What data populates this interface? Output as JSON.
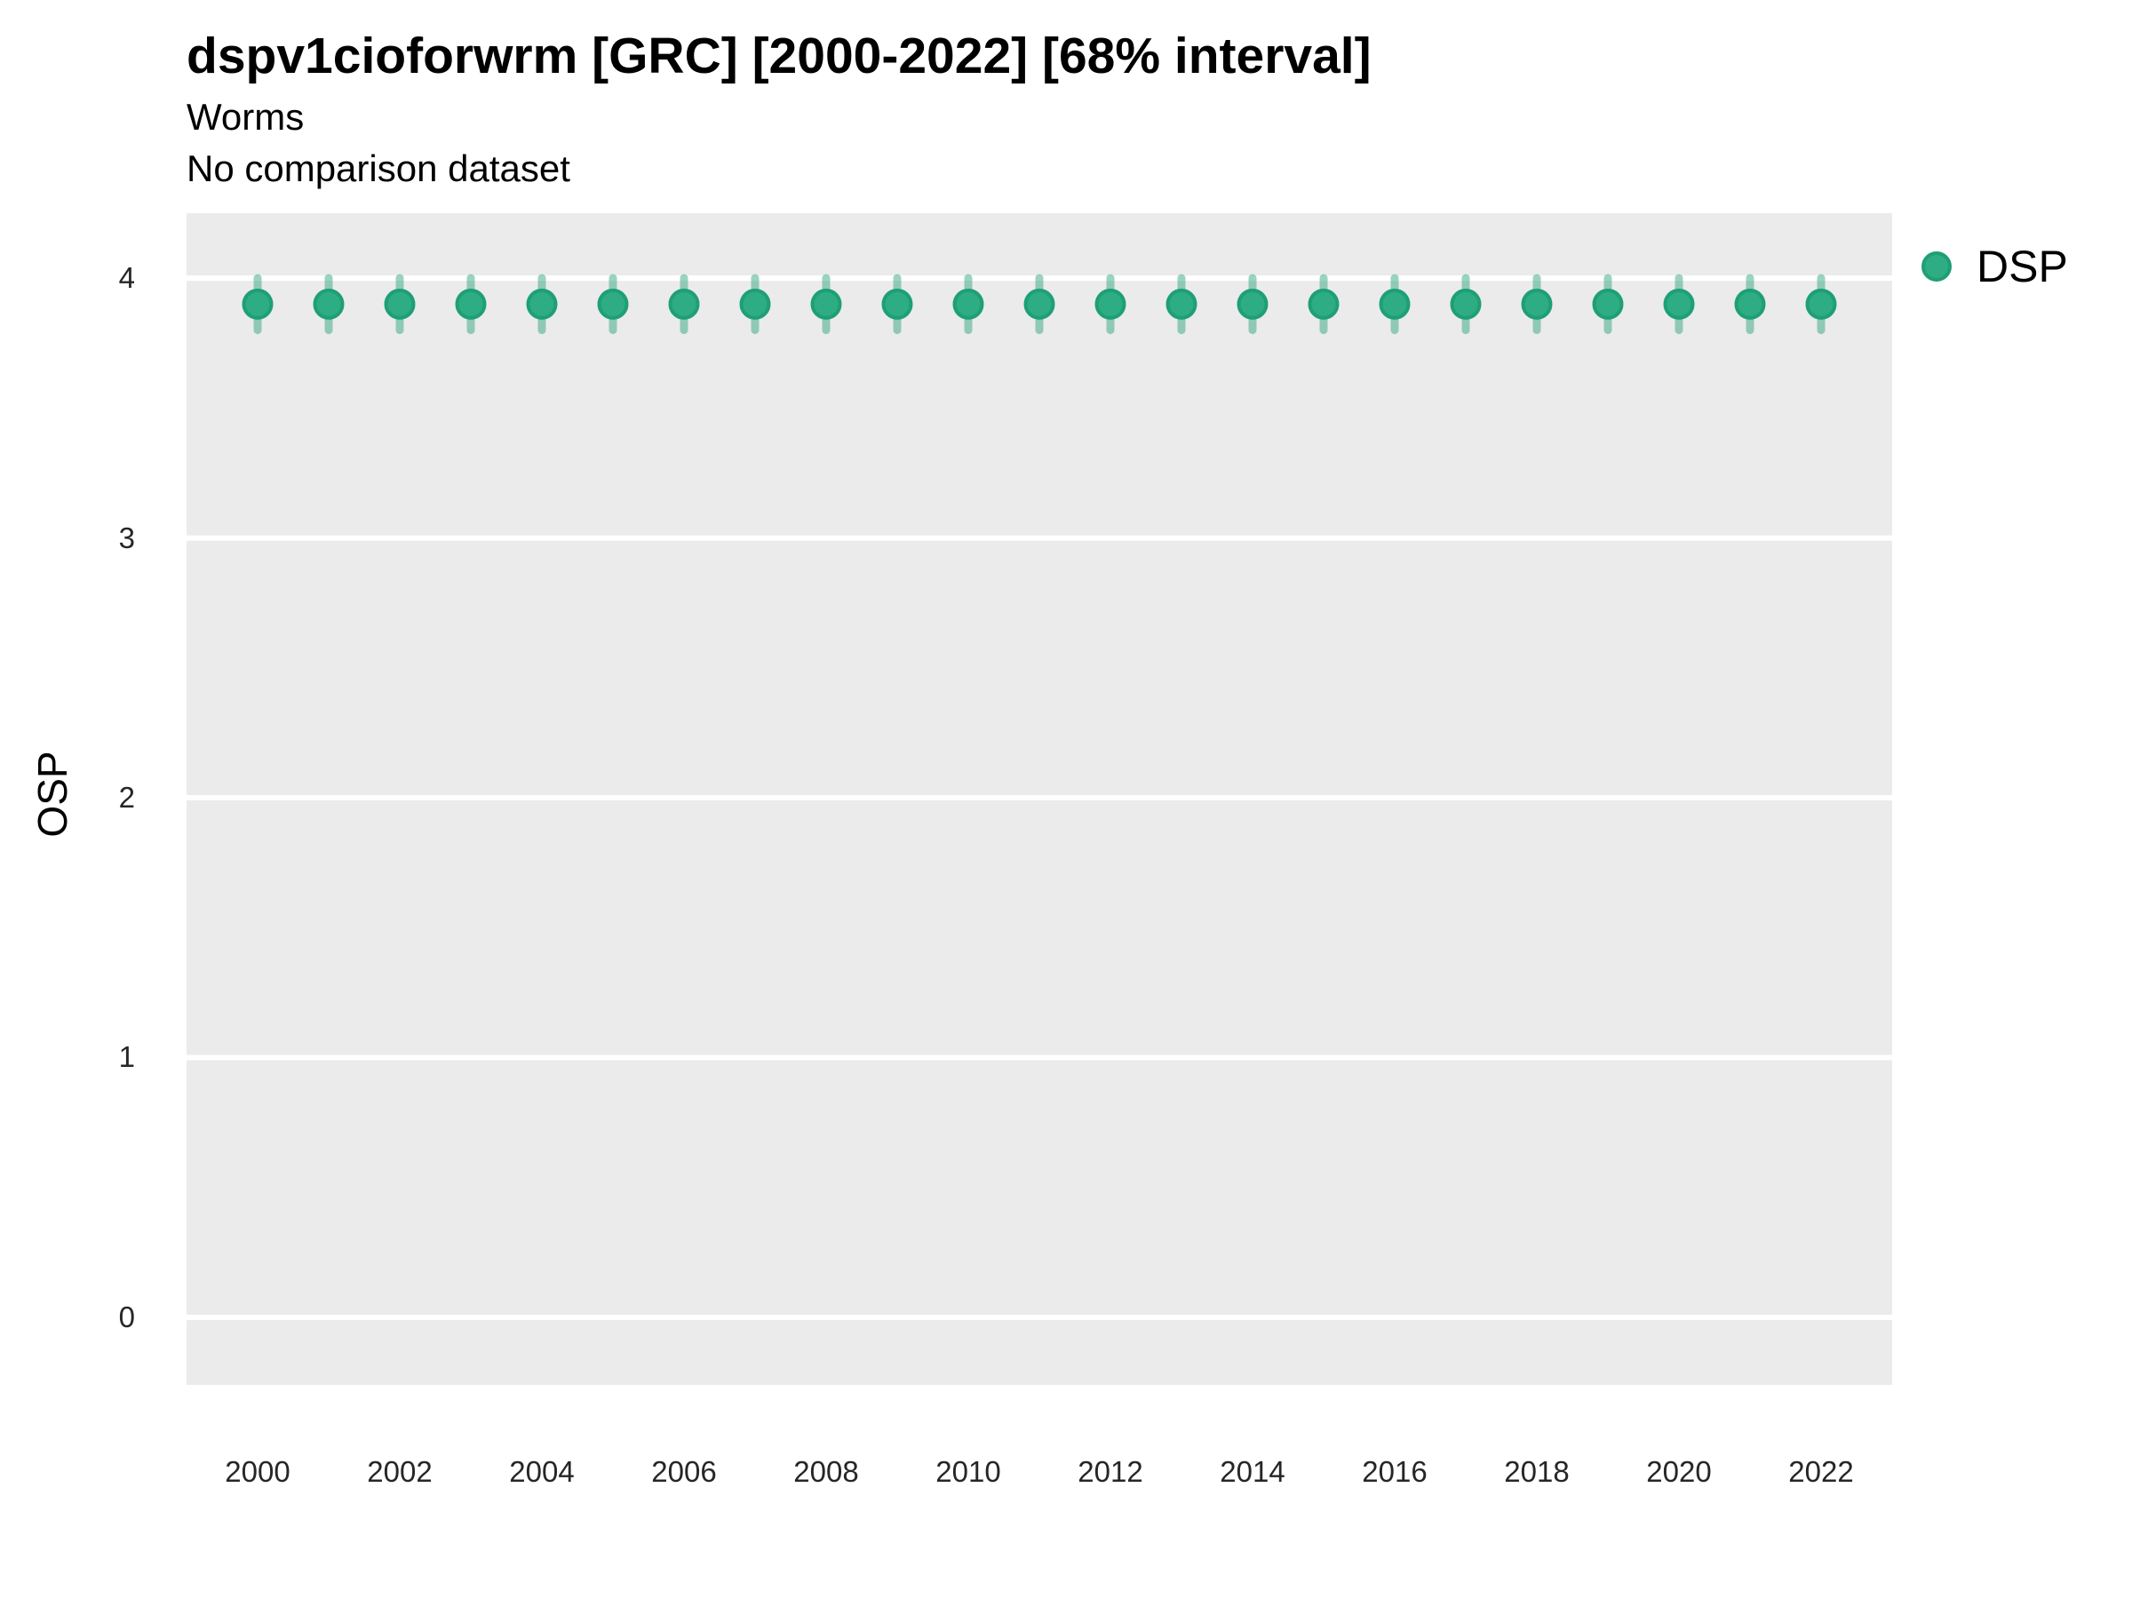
{
  "header": {
    "title": "dspv1cioforwrm [GRC] [2000-2022] [68% interval]",
    "subtitle": "Worms",
    "note": "No comparison dataset"
  },
  "legend": {
    "label": "DSP"
  },
  "colors": {
    "panel_background": "#EBEBEB",
    "gridline": "#FFFFFF",
    "point_fill": "#2EAC83",
    "point_stroke": "#1E9F76",
    "error_bar": "rgba(31,160,118,0.45)",
    "title_text": "#000000",
    "axis_text": "#262626"
  },
  "chart_data": {
    "type": "scatter",
    "title": "dspv1cioforwrm [GRC] [2000-2022] [68% interval]",
    "subtitle": "Worms",
    "note": "No comparison dataset",
    "xlabel": "",
    "ylabel": "OSP",
    "interval_label": "68% interval",
    "legend_position": "right-top",
    "grid": "horizontal-major-only",
    "xlim": [
      1999,
      2023
    ],
    "ylim": [
      -0.26,
      4.25
    ],
    "x_ticks": [
      2000,
      2002,
      2004,
      2006,
      2008,
      2010,
      2012,
      2014,
      2016,
      2018,
      2020,
      2022
    ],
    "y_ticks": [
      0,
      1,
      2,
      3,
      4
    ],
    "x": [
      2000,
      2001,
      2002,
      2003,
      2004,
      2005,
      2006,
      2007,
      2008,
      2009,
      2010,
      2011,
      2012,
      2013,
      2014,
      2015,
      2016,
      2017,
      2018,
      2019,
      2020,
      2021,
      2022
    ],
    "series": [
      {
        "name": "DSP",
        "values": [
          3.9,
          3.9,
          3.9,
          3.9,
          3.9,
          3.9,
          3.9,
          3.9,
          3.9,
          3.9,
          3.9,
          3.9,
          3.9,
          3.9,
          3.9,
          3.9,
          3.9,
          3.9,
          3.9,
          3.9,
          3.9,
          3.9,
          3.9
        ],
        "interval_low": [
          3.8,
          3.8,
          3.8,
          3.8,
          3.8,
          3.8,
          3.8,
          3.8,
          3.8,
          3.8,
          3.8,
          3.8,
          3.8,
          3.8,
          3.8,
          3.8,
          3.8,
          3.8,
          3.8,
          3.8,
          3.8,
          3.8,
          3.8
        ],
        "interval_high": [
          4.0,
          4.0,
          4.0,
          4.0,
          4.0,
          4.0,
          4.0,
          4.0,
          4.0,
          4.0,
          4.0,
          4.0,
          4.0,
          4.0,
          4.0,
          4.0,
          4.0,
          4.0,
          4.0,
          4.0,
          4.0,
          4.0,
          4.0
        ]
      }
    ]
  }
}
